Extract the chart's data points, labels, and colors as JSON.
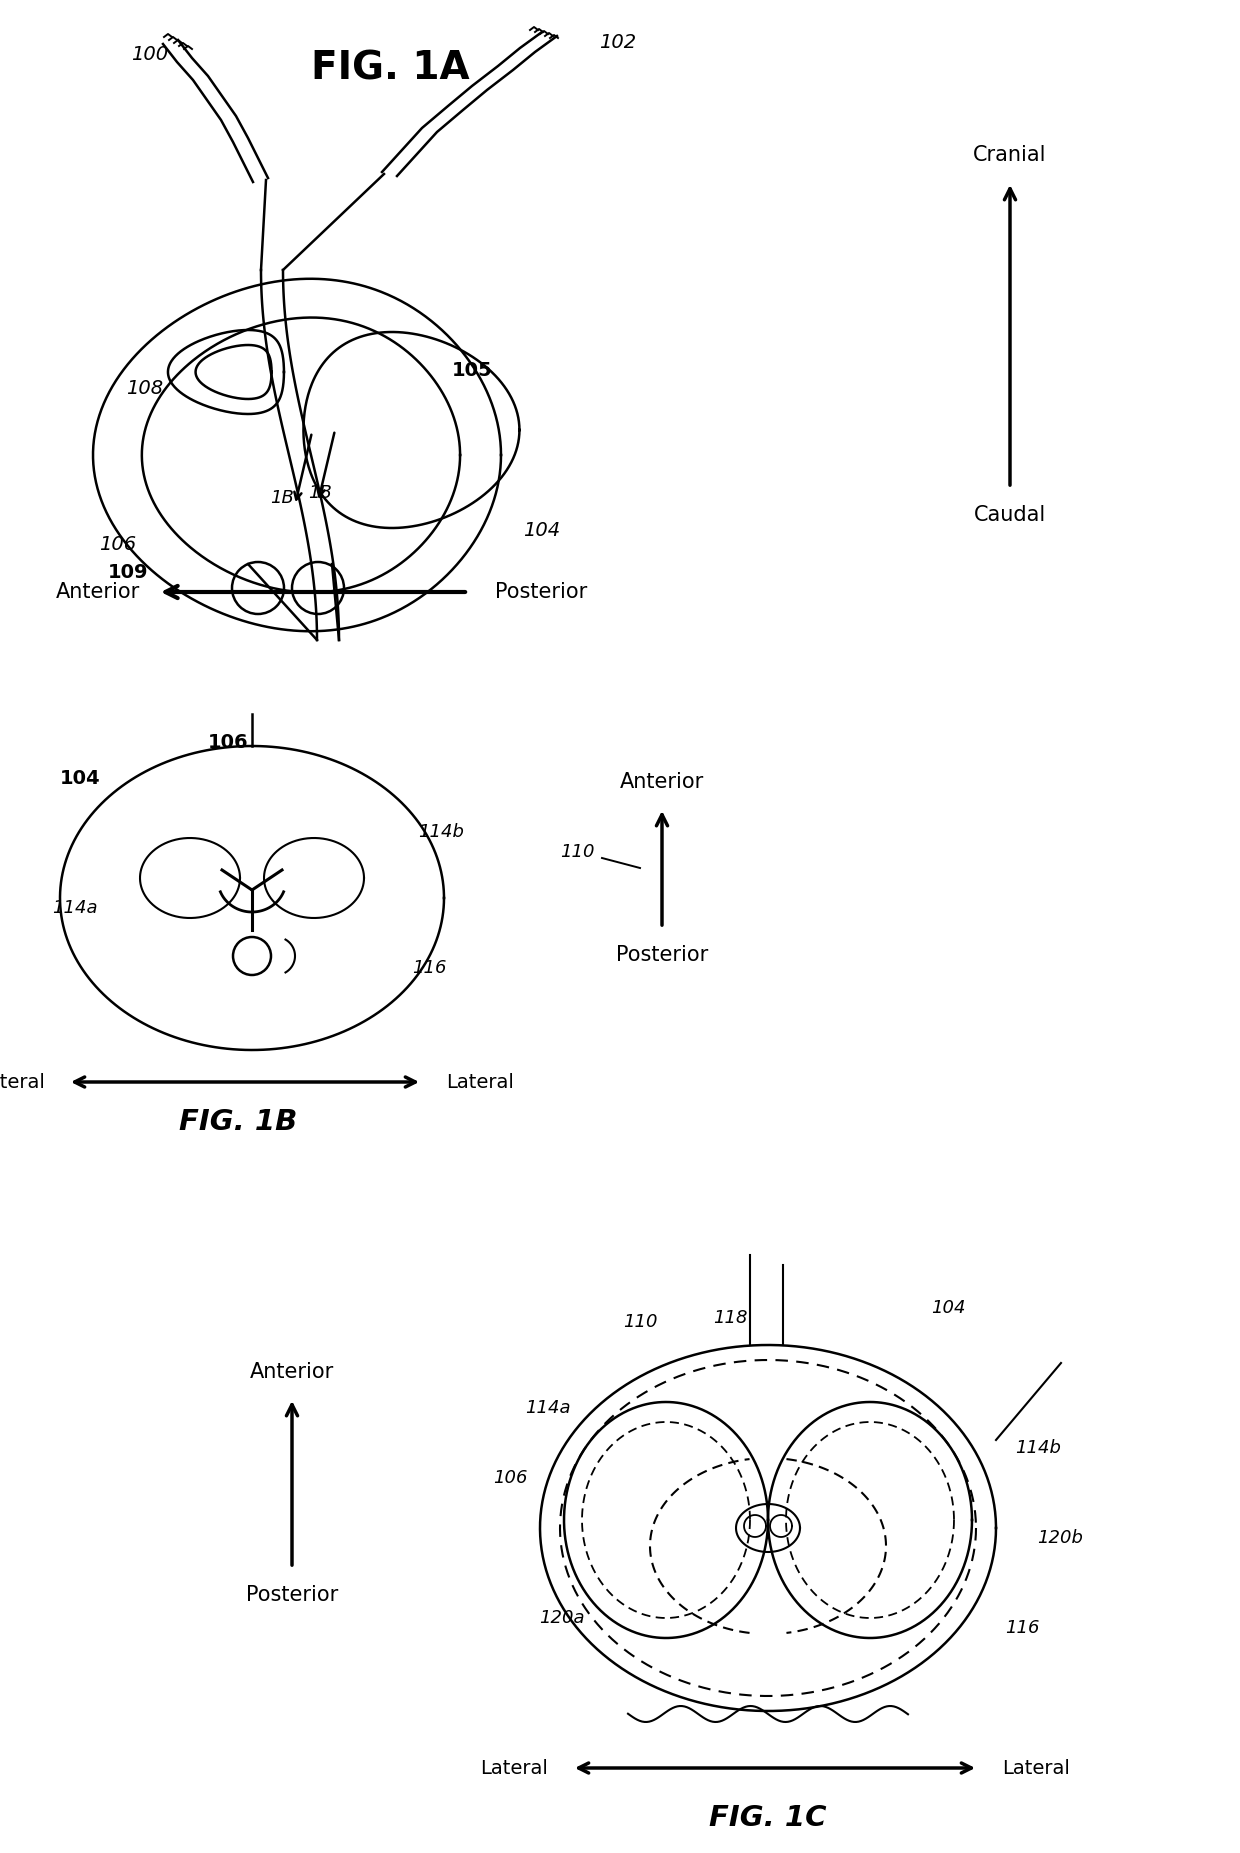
{
  "bg_color": "#ffffff",
  "lc": "#000000",
  "lw": 1.8,
  "fig_width": 12.4,
  "fig_height": 18.53,
  "title_1a": "FIG. 1A",
  "title_1b": "FIG. 1B",
  "title_1c": "FIG. 1C",
  "cranial_text": "Cranial",
  "caudal_text": "Caudal",
  "anterior_text": "Anterior",
  "posterior_text": "Posterior",
  "lateral_text": "Lateral"
}
